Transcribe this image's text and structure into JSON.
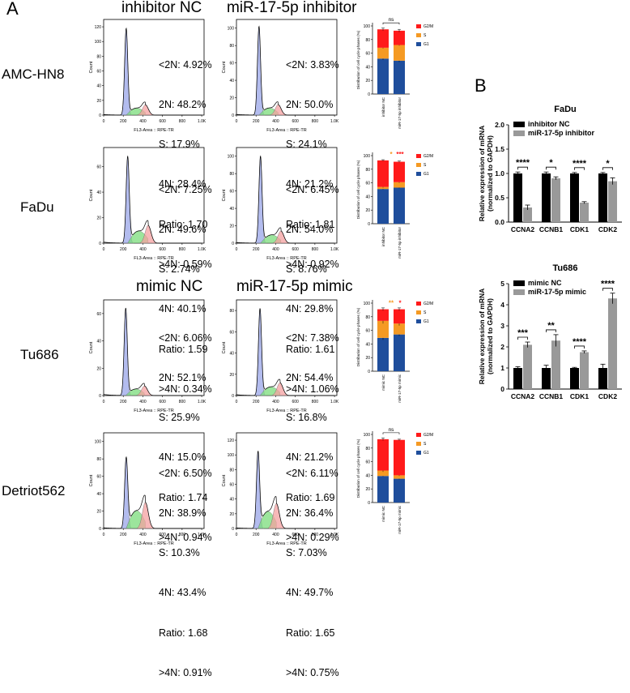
{
  "panels": {
    "a": "A",
    "b": "B"
  },
  "column_titles": {
    "inhibitor_nc": "inhibitor NC",
    "inhibitor": "miR-17-5p inhibitor",
    "mimic_nc": "mimic NC",
    "mimic": "miR-17-5p mimic"
  },
  "row_labels": [
    "AMC-HN8",
    "FaDu",
    "Tu686",
    "Detriot562"
  ],
  "flow_common": {
    "xlabel": "FL3-Area :: RPE-TR",
    "ylabel": "Count",
    "xticks": [
      "0",
      "200",
      "400",
      "600",
      "800",
      "1.0K"
    ]
  },
  "flow_stats": [
    [
      [
        "<2N: 4.92%",
        "2N: 48.2%",
        "S: 17.9%",
        "4N: 28.4%",
        "Ratio: 1.70",
        ">4N: 0.59%"
      ],
      [
        "<2N: 3.83%",
        "2N: 50.0%",
        "S: 24.1%",
        "4N: 21.2%",
        "Ratio: 1.81",
        ">4N: 0.92%"
      ]
    ],
    [
      [
        "<2N: 7.25%",
        "2N: 49.6%",
        "S: 2.74%",
        "4N: 40.1%",
        "Ratio: 1.59",
        ">4N: 0.34%"
      ],
      [
        "<2N: 6.45%",
        "2N: 54.0%",
        "S: 8.76%",
        "4N: 29.8%",
        "Ratio: 1.61",
        ">4N: 1.06%"
      ]
    ],
    [
      [
        "<2N: 6.06%",
        "2N: 52.1%",
        "S: 25.9%",
        "4N: 15.0%",
        "Ratio: 1.74",
        ">4N: 0.94%"
      ],
      [
        "<2N: 7.38%",
        "2N: 54.4%",
        "S: 16.8%",
        "4N: 21.2%",
        "Ratio: 1.69",
        ">4N: 0.29%"
      ]
    ],
    [
      [
        "<2N: 6.50%",
        "2N: 38.9%",
        "S: 10.3%",
        "4N: 43.4%",
        "Ratio: 1.68",
        ">4N: 0.91%"
      ],
      [
        "<2N: 6.11%",
        "2N: 36.4%",
        "S: 7.03%",
        "4N: 49.7%",
        "Ratio: 1.65",
        ">4N: 0.75%"
      ]
    ]
  ],
  "flow_yticks": [
    [
      [
        "0",
        "20",
        "40",
        "60",
        "80",
        "100",
        "120"
      ],
      [
        "0",
        "20",
        "40",
        "60",
        "80",
        "100"
      ]
    ],
    [
      [
        "0",
        "20",
        "40",
        "60"
      ],
      [
        "0",
        "20",
        "40",
        "60",
        "80",
        "100"
      ]
    ],
    [
      [
        "0",
        "20",
        "40",
        "60"
      ],
      [
        "0",
        "20",
        "40",
        "60",
        "80"
      ]
    ],
    [
      [
        "0",
        "20",
        "40",
        "60",
        "80",
        "100"
      ],
      [
        "0",
        "20",
        "40",
        "60",
        "80",
        "100",
        "120"
      ]
    ]
  ],
  "flow_shapes": [
    [
      {
        "peak": 230,
        "ymax": 130,
        "h1": 118,
        "h2": 14
      },
      {
        "peak": 230,
        "ymax": 110,
        "h1": 102,
        "h2": 12
      }
    ],
    [
      {
        "peak": 245,
        "ymax": 75,
        "h1": 68,
        "h2": 14
      },
      {
        "peak": 245,
        "ymax": 110,
        "h1": 100,
        "h2": 14
      }
    ],
    [
      {
        "peak": 225,
        "ymax": 70,
        "h1": 64,
        "h2": 7
      },
      {
        "peak": 240,
        "ymax": 90,
        "h1": 82,
        "h2": 12
      }
    ],
    [
      {
        "peak": 230,
        "ymax": 110,
        "h1": 82,
        "h2": 30
      },
      {
        "peak": 220,
        "ymax": 130,
        "h1": 105,
        "h2": 34
      }
    ]
  ],
  "chart_data": [
    {
      "type": "bar",
      "stacked": true,
      "id": "phase-amc",
      "ylabel": "Distribution of cell cycle phases (%)",
      "categories": [
        "inhibitor NC",
        "miR-17-5p inhibitor"
      ],
      "ylim": [
        0,
        100
      ],
      "yticks": [
        "0",
        "20",
        "40",
        "60",
        "80",
        "100"
      ],
      "series": [
        {
          "name": "G1",
          "color": "#1f4e9c",
          "values": [
            52,
            49
          ]
        },
        {
          "name": "S",
          "color": "#f59a23",
          "values": [
            16,
            23
          ]
        },
        {
          "name": "G2/M",
          "color": "#ff1a1a",
          "values": [
            27,
            21
          ]
        }
      ],
      "errors": [
        [
          2,
          2
        ],
        [
          1,
          1
        ],
        [
          2,
          2
        ]
      ],
      "sig": [
        {
          "text": "ns",
          "color": "#000000",
          "bracket": true
        }
      ]
    },
    {
      "type": "bar",
      "stacked": true,
      "id": "phase-fadu",
      "ylabel": "Distribution of cell cycle phases (%)",
      "categories": [
        "inhibitor NC",
        "miR-17-5p inhibitor"
      ],
      "ylim": [
        0,
        100
      ],
      "yticks": [
        "0",
        "20",
        "40",
        "60",
        "80",
        "100"
      ],
      "series": [
        {
          "name": "G1",
          "color": "#1f4e9c",
          "values": [
            51,
            53
          ]
        },
        {
          "name": "S",
          "color": "#f59a23",
          "values": [
            3,
            8
          ]
        },
        {
          "name": "G2/M",
          "color": "#ff1a1a",
          "values": [
            39,
            30
          ]
        }
      ],
      "errors": [
        [
          1,
          1
        ],
        [
          1,
          1
        ],
        [
          1,
          1
        ]
      ],
      "sig": [
        {
          "text": "*",
          "color": "#f59a23",
          "bracket": false
        },
        {
          "text": "***",
          "color": "#ff1a1a",
          "bracket": false
        }
      ]
    },
    {
      "type": "bar",
      "stacked": true,
      "id": "phase-tu686",
      "ylabel": "Distribution of cell cycle phases (%)",
      "categories": [
        "mimic NC",
        "miR-17-5p mimic"
      ],
      "ylim": [
        0,
        100
      ],
      "yticks": [
        "0",
        "20",
        "40",
        "60",
        "80",
        "100"
      ],
      "series": [
        {
          "name": "G1",
          "color": "#1f4e9c",
          "values": [
            49,
            54
          ]
        },
        {
          "name": "S",
          "color": "#f59a23",
          "values": [
            25,
            16
          ]
        },
        {
          "name": "G2/M",
          "color": "#ff1a1a",
          "values": [
            17,
            21
          ]
        }
      ],
      "errors": [
        [
          3,
          2
        ],
        [
          4,
          3
        ],
        [
          2,
          2
        ]
      ],
      "sig": [
        {
          "text": "**",
          "color": "#f59a23",
          "bracket": false
        },
        {
          "text": "*",
          "color": "#ff1a1a",
          "bracket": false
        }
      ]
    },
    {
      "type": "bar",
      "stacked": true,
      "id": "phase-detroit",
      "ylabel": "Distribution of cell cycle phases (%)",
      "categories": [
        "mimic NC",
        "miR-17-5p mimic"
      ],
      "ylim": [
        0,
        100
      ],
      "yticks": [
        "0",
        "20",
        "40",
        "60",
        "80",
        "100"
      ],
      "series": [
        {
          "name": "G1",
          "color": "#1f4e9c",
          "values": [
            39,
            35
          ]
        },
        {
          "name": "S",
          "color": "#f59a23",
          "values": [
            8,
            5
          ]
        },
        {
          "name": "G2/M",
          "color": "#ff1a1a",
          "values": [
            46,
            52
          ]
        }
      ],
      "errors": [
        [
          1,
          1
        ],
        [
          2,
          1
        ],
        [
          2,
          1
        ]
      ],
      "sig": [
        {
          "text": "ns",
          "color": "#000000",
          "bracket": true
        }
      ]
    },
    {
      "type": "bar",
      "id": "mrna-fadu",
      "title": "FaDu",
      "ylabel": "Relative expression of mRNA (normalized to GAPDH)",
      "categories": [
        "CCNA2",
        "CCNB1",
        "CDK1",
        "CDK2"
      ],
      "ylim": [
        0,
        2.0
      ],
      "yticks": [
        "0.0",
        "0.5",
        "1.0",
        "1.5",
        "2.0"
      ],
      "series": [
        {
          "name": "inhibitor NC",
          "color": "#000000",
          "values": [
            1.0,
            1.0,
            1.0,
            1.0
          ],
          "errors": [
            0.03,
            0.03,
            0.02,
            0.02
          ]
        },
        {
          "name": "miR-17-5p inhibitor",
          "color": "#999999",
          "values": [
            0.3,
            0.9,
            0.4,
            0.84
          ],
          "errors": [
            0.05,
            0.03,
            0.02,
            0.07
          ]
        }
      ],
      "sig": [
        "****",
        "*",
        "****",
        "*"
      ]
    },
    {
      "type": "bar",
      "id": "mrna-tu686",
      "title": "Tu686",
      "ylabel": "Relative expression of mRNA (normalized to GAPDH)",
      "categories": [
        "CCNA2",
        "CCNB1",
        "CDK1",
        "CDK2"
      ],
      "ylim": [
        0,
        5
      ],
      "yticks": [
        "0",
        "1",
        "2",
        "3",
        "4",
        "5"
      ],
      "series": [
        {
          "name": "mimic NC",
          "color": "#000000",
          "values": [
            1.0,
            1.0,
            1.0,
            1.0
          ],
          "errors": [
            0.06,
            0.13,
            0.03,
            0.18
          ]
        },
        {
          "name": "miR-17-5p mimic",
          "color": "#999999",
          "values": [
            2.1,
            2.3,
            1.75,
            4.3
          ],
          "errors": [
            0.13,
            0.28,
            0.06,
            0.25
          ]
        }
      ],
      "sig": [
        "***",
        "**",
        "****",
        "****"
      ]
    }
  ]
}
